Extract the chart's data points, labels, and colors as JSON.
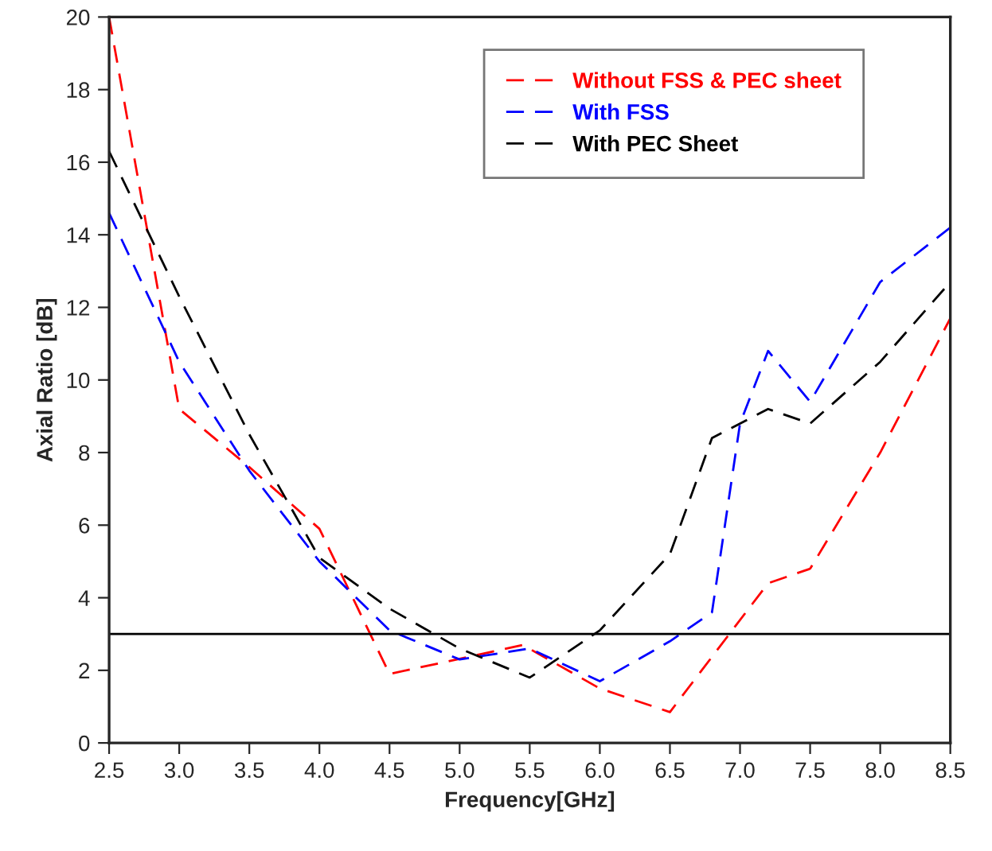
{
  "chart_data": {
    "type": "line",
    "xlabel": "Frequency[GHz]",
    "ylabel": "Axial Ratio [dB]",
    "xlim": [
      2.5,
      8.5
    ],
    "ylim": [
      0,
      20
    ],
    "xticks": [
      2.5,
      {
        "value": 3,
        "label": "3.0"
      },
      3.5,
      {
        "value": 4,
        "label": "4.0"
      },
      4.5,
      {
        "value": 5,
        "label": "5.0"
      },
      5.5,
      {
        "value": 6,
        "label": "6.0"
      },
      6.5,
      {
        "value": 7,
        "label": "7.0"
      },
      7.5,
      {
        "value": 8,
        "label": "8.0"
      },
      8.5
    ],
    "yticks": [
      0,
      2,
      4,
      6,
      8,
      10,
      12,
      14,
      16,
      18,
      20
    ],
    "grid": false,
    "legend": "top right",
    "line_style": "dashed",
    "marker": "none",
    "ref_lines": [
      {
        "axis": "y",
        "value": 3,
        "color": "#000000",
        "line_style": "solid"
      }
    ],
    "series": [
      {
        "name": "Without FSS & PEC sheet",
        "color": "#ff0000",
        "x": [
          2.5,
          3.0,
          3.5,
          4.0,
          4.5,
          5.1,
          5.45,
          6.0,
          6.5,
          7.2,
          7.5,
          8.0,
          8.5
        ],
        "values": [
          20,
          9.2,
          7.6,
          5.9,
          1.9,
          2.4,
          2.7,
          1.5,
          0.85,
          4.4,
          4.8,
          8.0,
          11.7
        ]
      },
      {
        "name": "With FSS",
        "color": "#0000ff",
        "x": [
          2.5,
          3.0,
          3.5,
          4.0,
          4.5,
          5.0,
          5.5,
          6.0,
          6.5,
          6.8,
          7.0,
          7.2,
          7.5,
          8.0,
          8.5
        ],
        "values": [
          14.6,
          10.5,
          7.5,
          5.0,
          3.1,
          2.3,
          2.6,
          1.7,
          2.8,
          3.6,
          8.8,
          10.8,
          9.4,
          12.7,
          14.2
        ]
      },
      {
        "name": "With PEC Sheet",
        "color": "#000000",
        "x": [
          2.5,
          3.0,
          3.5,
          4.0,
          4.5,
          5.0,
          5.5,
          6.0,
          6.5,
          6.8,
          7.2,
          7.5,
          8.0,
          8.5
        ],
        "values": [
          16.3,
          12.3,
          8.5,
          5.1,
          3.7,
          2.6,
          1.8,
          3.1,
          5.2,
          8.4,
          9.2,
          8.8,
          10.5,
          12.7
        ]
      }
    ]
  }
}
